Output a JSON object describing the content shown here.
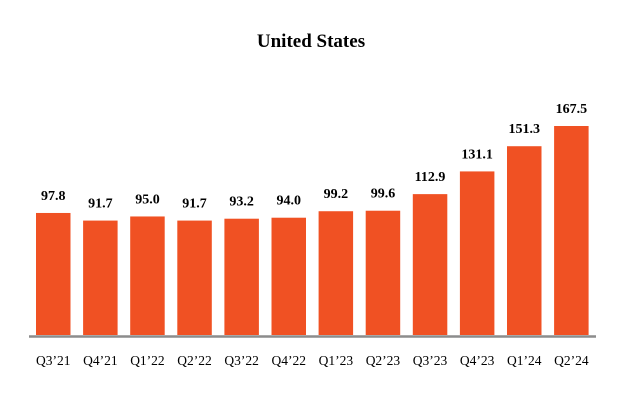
{
  "chart_data": {
    "type": "bar",
    "title": "United States",
    "categories": [
      "Q3’21",
      "Q4’21",
      "Q1’22",
      "Q2’22",
      "Q3’22",
      "Q4’22",
      "Q1’23",
      "Q2’23",
      "Q3’23",
      "Q4’23",
      "Q1’24",
      "Q2’24"
    ],
    "values": [
      97.8,
      91.7,
      95.0,
      91.7,
      93.2,
      94.0,
      99.2,
      99.6,
      112.9,
      131.1,
      151.3,
      167.5
    ],
    "data_labels": [
      "97.8",
      "91.7",
      "95.0",
      "91.7",
      "93.2",
      "94.0",
      "99.2",
      "99.6",
      "112.9",
      "131.1",
      "151.3",
      "167.5"
    ],
    "xlabel": "",
    "ylabel": "",
    "ylim": [
      0,
      167.5
    ],
    "grid": false,
    "colors": {
      "bar": "#F05123",
      "axis": "#8C8C8C"
    }
  }
}
